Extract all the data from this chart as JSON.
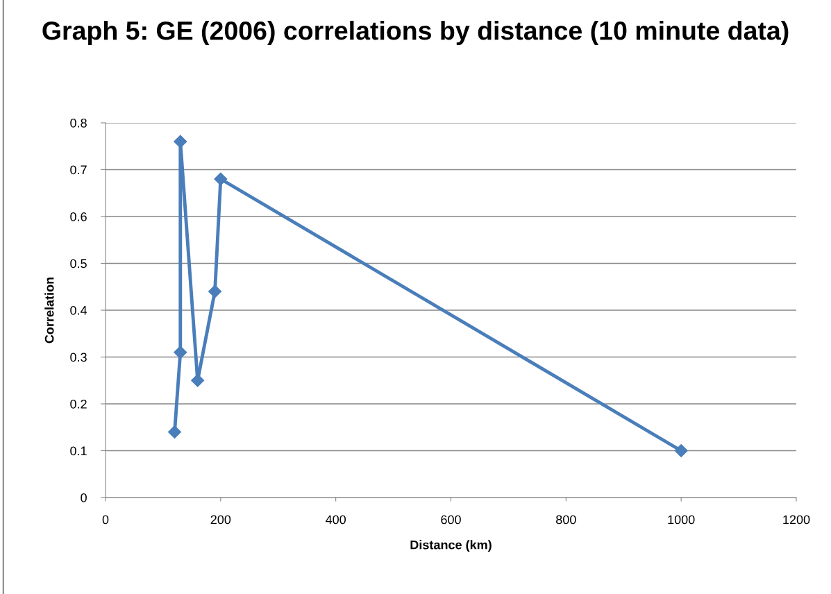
{
  "chart_data": {
    "type": "line",
    "title": "Graph 5: GE (2006) correlations by distance (10 minute data)",
    "xlabel": "Distance (km)",
    "ylabel": "Correlation",
    "series": [
      {
        "color": "#4a7ebb",
        "x": [
          120,
          130,
          130,
          160,
          190,
          200,
          1000
        ],
        "values": [
          0.14,
          0.31,
          0.76,
          0.25,
          0.44,
          0.68,
          0.1
        ]
      }
    ],
    "xlim": [
      0,
      1200
    ],
    "xticks": [
      0,
      200,
      400,
      600,
      800,
      1000,
      1200
    ],
    "ylim": [
      0,
      0.8
    ],
    "yticks": [
      0,
      0.1,
      0.2,
      0.3,
      0.4,
      0.5,
      0.6,
      0.7,
      0.8
    ],
    "grid": "y",
    "marker": "diamond",
    "line_style": "solid",
    "legend": false
  }
}
